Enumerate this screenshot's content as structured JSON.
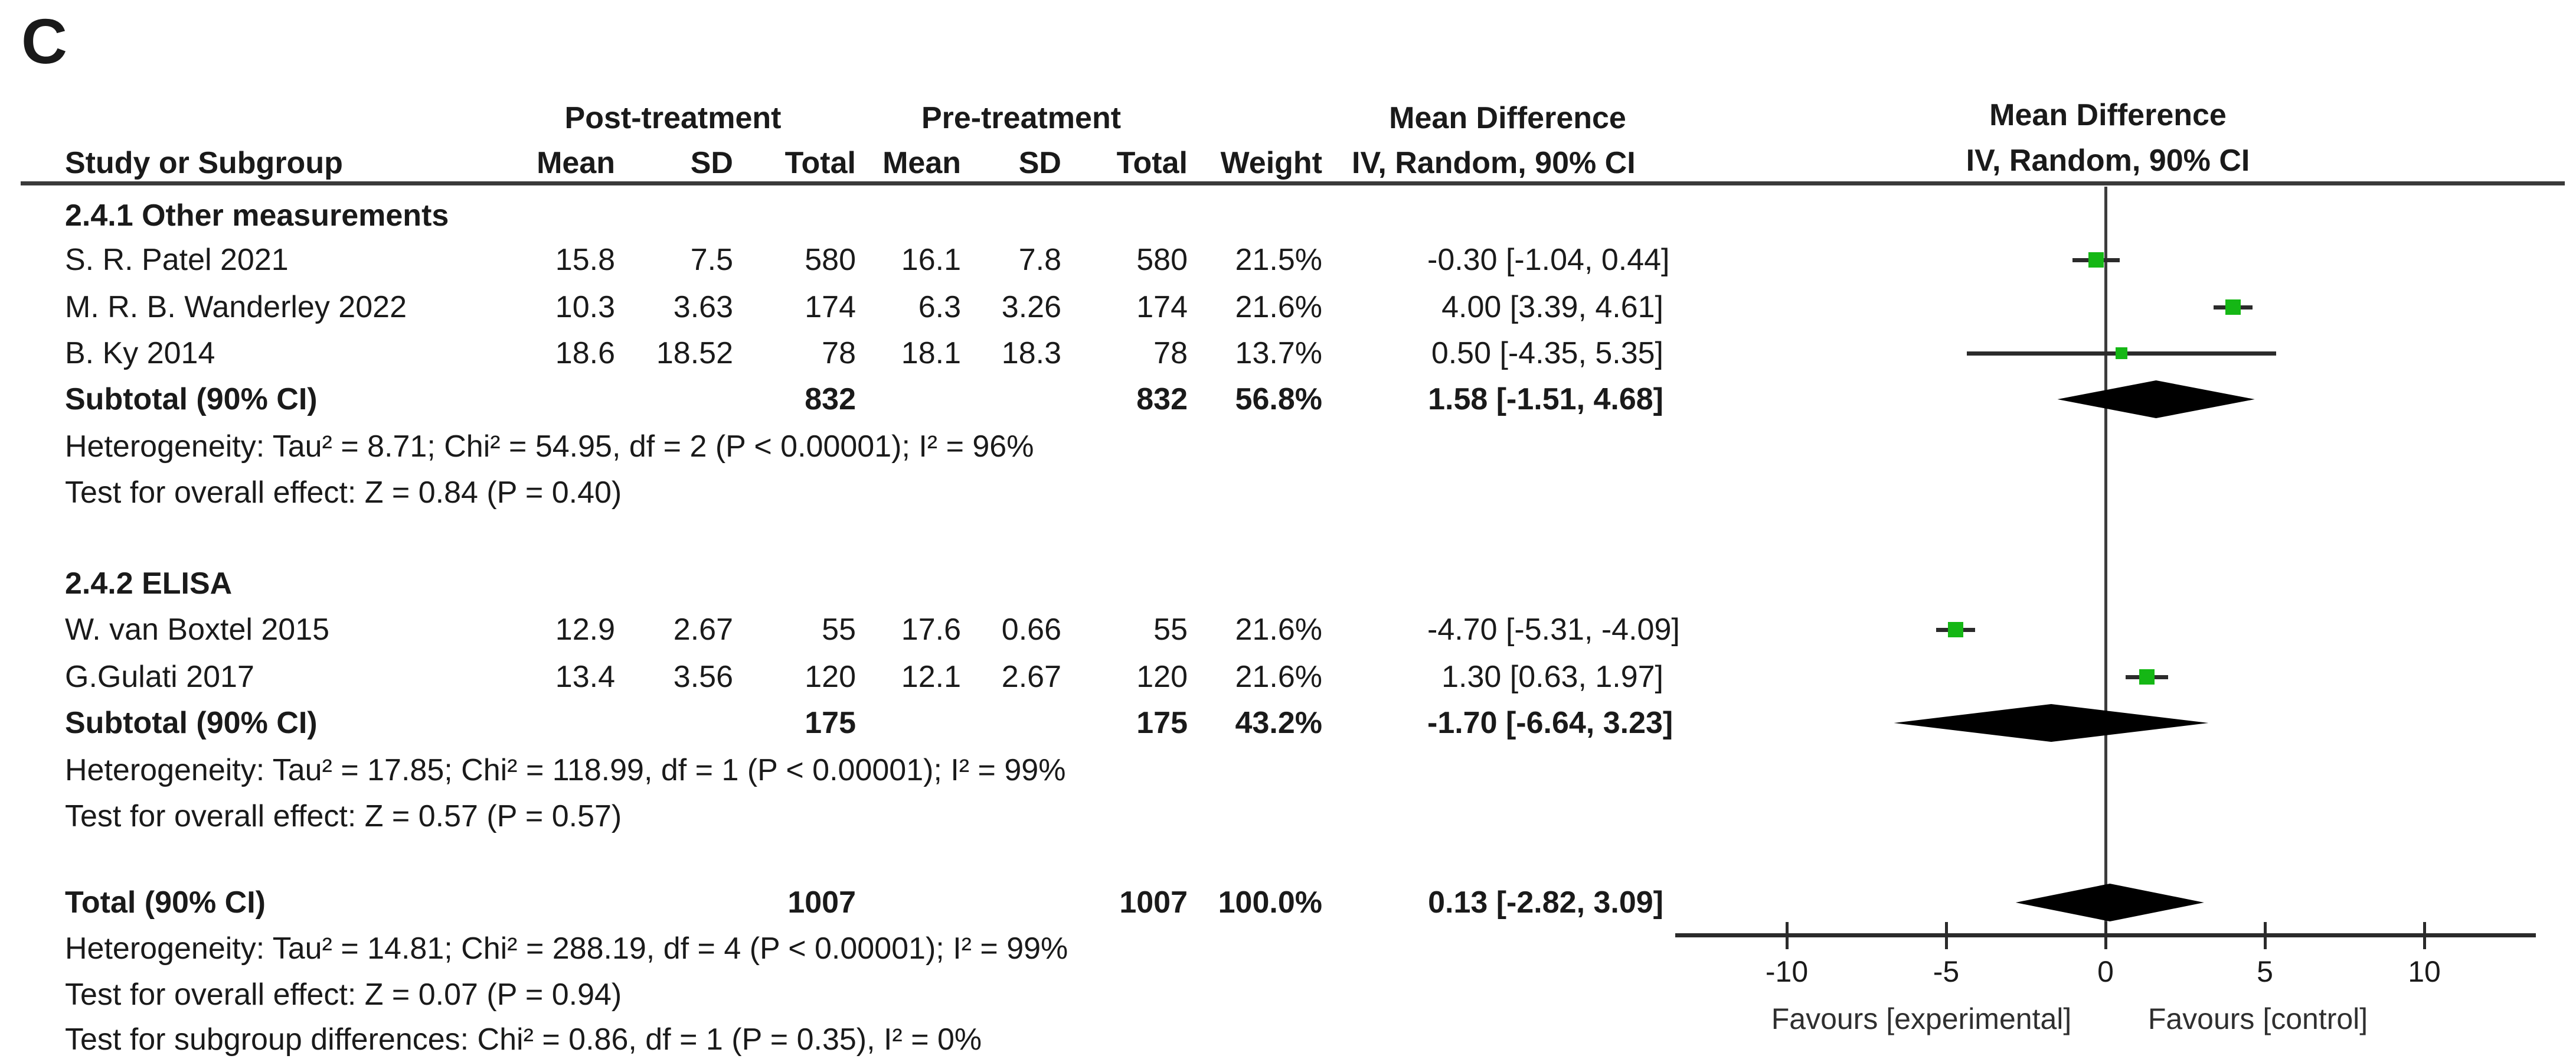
{
  "panel_label": "C",
  "table": {
    "group_headers": {
      "post": "Post-treatment",
      "pre": "Pre-treatment",
      "md_title": "Mean Difference",
      "md_subtitle": "IV, Random, 90% CI"
    },
    "columns": {
      "study": "Study or Subgroup",
      "mean": "Mean",
      "sd": "SD",
      "total": "Total",
      "weight": "Weight",
      "ci": "IV, Random, 90% CI"
    }
  },
  "plot_header": {
    "title": "Mean Difference",
    "subtitle": "IV, Random, 90% CI"
  },
  "chart_data": {
    "type": "forest",
    "effect_measure": "Mean Difference, IV, Random, 90% CI",
    "marker_color": "#15b715",
    "axis": {
      "ticks": [
        -10,
        -5,
        0,
        5,
        10
      ],
      "xmin": -13.5,
      "xmax": 13.5,
      "favours_left": "Favours [experimental]",
      "favours_right": "Favours [control]"
    },
    "sections": [
      {
        "title": "2.4.1 Other measurements",
        "studies": [
          {
            "name": "S. R. Patel 2021",
            "post_mean": "15.8",
            "post_sd": "7.5",
            "post_total": "580",
            "pre_mean": "16.1",
            "pre_sd": "7.8",
            "pre_total": "580",
            "weight": "21.5%",
            "md_ci": "-0.30 [-1.04, 0.44]",
            "md": -0.3,
            "ci_low": -1.04,
            "ci_high": 0.44
          },
          {
            "name": "M. R. B. Wanderley 2022",
            "post_mean": "10.3",
            "post_sd": "3.63",
            "post_total": "174",
            "pre_mean": "6.3",
            "pre_sd": "3.26",
            "pre_total": "174",
            "weight": "21.6%",
            "md_ci": "4.00 [3.39, 4.61]",
            "md": 4.0,
            "ci_low": 3.39,
            "ci_high": 4.61
          },
          {
            "name": "B. Ky 2014",
            "post_mean": "18.6",
            "post_sd": "18.52",
            "post_total": "78",
            "pre_mean": "18.1",
            "pre_sd": "18.3",
            "pre_total": "78",
            "weight": "13.7%",
            "md_ci": "0.50 [-4.35, 5.35]",
            "md": 0.5,
            "ci_low": -4.35,
            "ci_high": 5.35
          }
        ],
        "subtotal": {
          "label": "Subtotal (90% CI)",
          "post_total": "832",
          "pre_total": "832",
          "weight": "56.8%",
          "md_ci": "1.58 [-1.51, 4.68]",
          "md": 1.58,
          "ci_low": -1.51,
          "ci_high": 4.68
        },
        "heterogeneity": "Heterogeneity: Tau² = 8.71; Chi² = 54.95, df = 2 (P < 0.00001); I² = 96%",
        "overall_effect": "Test for overall effect: Z = 0.84 (P = 0.40)"
      },
      {
        "title": "2.4.2 ELISA",
        "studies": [
          {
            "name": "W. van Boxtel 2015",
            "post_mean": "12.9",
            "post_sd": "2.67",
            "post_total": "55",
            "pre_mean": "17.6",
            "pre_sd": "0.66",
            "pre_total": "55",
            "weight": "21.6%",
            "md_ci": "-4.70 [-5.31, -4.09]",
            "md": -4.7,
            "ci_low": -5.31,
            "ci_high": -4.09
          },
          {
            "name": "G.Gulati 2017",
            "post_mean": "13.4",
            "post_sd": "3.56",
            "post_total": "120",
            "pre_mean": "12.1",
            "pre_sd": "2.67",
            "pre_total": "120",
            "weight": "21.6%",
            "md_ci": "1.30 [0.63, 1.97]",
            "md": 1.3,
            "ci_low": 0.63,
            "ci_high": 1.97
          }
        ],
        "subtotal": {
          "label": "Subtotal (90% CI)",
          "post_total": "175",
          "pre_total": "175",
          "weight": "43.2%",
          "md_ci": "-1.70 [-6.64, 3.23]",
          "md": -1.7,
          "ci_low": -6.64,
          "ci_high": 3.23
        },
        "heterogeneity": "Heterogeneity: Tau² = 17.85; Chi² = 118.99, df = 1 (P < 0.00001); I² = 99%",
        "overall_effect": "Test for overall effect: Z = 0.57 (P = 0.57)"
      }
    ],
    "total": {
      "label": "Total (90% CI)",
      "post_total": "1007",
      "pre_total": "1007",
      "weight": "100.0%",
      "md_ci": "0.13 [-2.82, 3.09]",
      "md": 0.13,
      "ci_low": -2.82,
      "ci_high": 3.09
    },
    "total_heterogeneity": "Heterogeneity: Tau² = 14.81; Chi² = 288.19, df = 4 (P < 0.00001); I² = 99%",
    "total_overall_effect": "Test for overall effect: Z = 0.07 (P = 0.94)",
    "subgroup_differences": "Test for subgroup differences: Chi² = 0.86, df = 1 (P = 0.35), I² = 0%"
  }
}
